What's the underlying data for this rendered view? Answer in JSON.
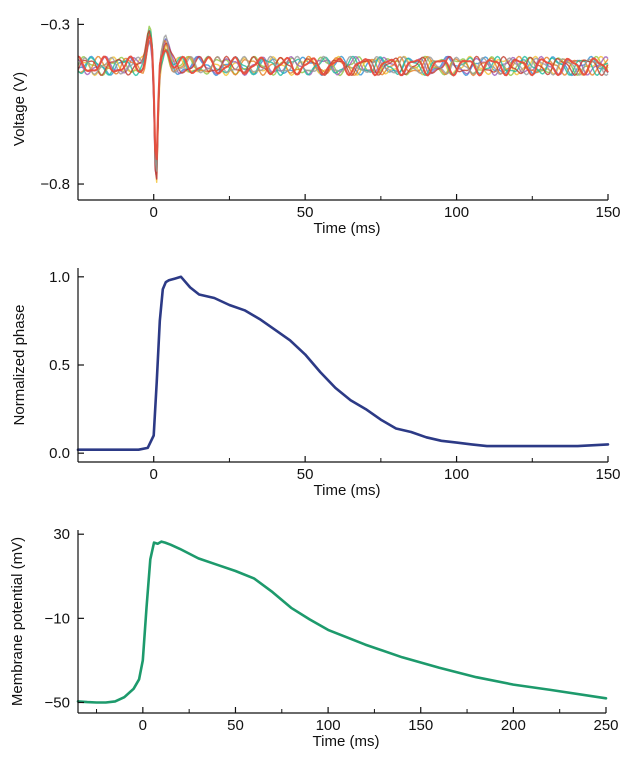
{
  "chart_data": [
    {
      "type": "line",
      "xlabel": "Time (ms)",
      "ylabel": "Voltage (V)",
      "xlim": [
        -25,
        150
      ],
      "ylim": [
        -0.85,
        -0.28
      ],
      "xticks": [
        0,
        50,
        100,
        150
      ],
      "xtick_labels": [
        "0",
        "50",
        "100",
        "150"
      ],
      "yticks": [
        -0.3,
        -0.8
      ],
      "ytick_labels": [
        "−0.3",
        "−0.8"
      ],
      "baseline": -0.43,
      "spike": {
        "x": 0.8,
        "min": -0.82,
        "pre_peak": -0.33,
        "post_peak": -0.36
      },
      "oscillation_amplitude": 0.022,
      "series_colors": [
        "#2b8fd6",
        "#8cc63f",
        "#f2c12e",
        "#9b59b6",
        "#e67e22",
        "#1abc9c",
        "#c0392b",
        "#999999",
        "#e74c3c"
      ],
      "grid": false
    },
    {
      "type": "line",
      "xlabel": "Time (ms)",
      "ylabel": "Normalized phase",
      "xlim": [
        -25,
        150
      ],
      "ylim": [
        -0.05,
        1.05
      ],
      "xticks": [
        0,
        50,
        100,
        150
      ],
      "xtick_labels": [
        "0",
        "50",
        "100",
        "150"
      ],
      "yticks": [
        0.0,
        0.5,
        1.0
      ],
      "ytick_labels": [
        "0.0",
        "0.5",
        "1.0"
      ],
      "color": "#2c3a86",
      "x": [
        -25,
        -20,
        -15,
        -10,
        -5,
        -2,
        0,
        1,
        2,
        3,
        4,
        5,
        7,
        9,
        10,
        12,
        15,
        20,
        25,
        30,
        35,
        40,
        45,
        50,
        55,
        60,
        65,
        70,
        75,
        80,
        85,
        90,
        95,
        100,
        105,
        110,
        120,
        130,
        140,
        150
      ],
      "values": [
        0.02,
        0.02,
        0.02,
        0.02,
        0.02,
        0.03,
        0.1,
        0.4,
        0.75,
        0.93,
        0.97,
        0.98,
        0.99,
        1.0,
        0.98,
        0.94,
        0.9,
        0.88,
        0.84,
        0.81,
        0.76,
        0.7,
        0.64,
        0.56,
        0.46,
        0.37,
        0.3,
        0.25,
        0.19,
        0.14,
        0.12,
        0.09,
        0.07,
        0.06,
        0.05,
        0.04,
        0.04,
        0.04,
        0.04,
        0.05
      ],
      "grid": false
    },
    {
      "type": "line",
      "xlabel": "Time (ms)",
      "ylabel": "Membrane potential (mV)",
      "xlim": [
        -35,
        250
      ],
      "ylim": [
        -55,
        32
      ],
      "xticks": [
        0,
        50,
        100,
        150,
        200,
        250
      ],
      "xtick_labels": [
        "0",
        "50",
        "100",
        "150",
        "200",
        "250"
      ],
      "yticks": [
        30,
        -10,
        -50
      ],
      "ytick_labels": [
        "30",
        "−10",
        "−50"
      ],
      "color": "#1d9a6c",
      "x": [
        -35,
        -30,
        -25,
        -20,
        -15,
        -10,
        -5,
        -2,
        0,
        2,
        4,
        6,
        8,
        10,
        12,
        15,
        20,
        30,
        40,
        50,
        60,
        70,
        80,
        90,
        100,
        120,
        140,
        160,
        180,
        200,
        220,
        250
      ],
      "values": [
        -49.5,
        -49.8,
        -50.0,
        -50.0,
        -49.5,
        -47.5,
        -43.5,
        -39.0,
        -30.0,
        -5.0,
        18.0,
        26.0,
        25.5,
        26.5,
        26.0,
        25.0,
        23.0,
        18.5,
        15.5,
        12.5,
        9.0,
        2.5,
        -5.0,
        -10.5,
        -15.5,
        -22.5,
        -28.5,
        -33.5,
        -38.0,
        -41.5,
        -44.0,
        -48.0
      ],
      "grid": false
    }
  ]
}
